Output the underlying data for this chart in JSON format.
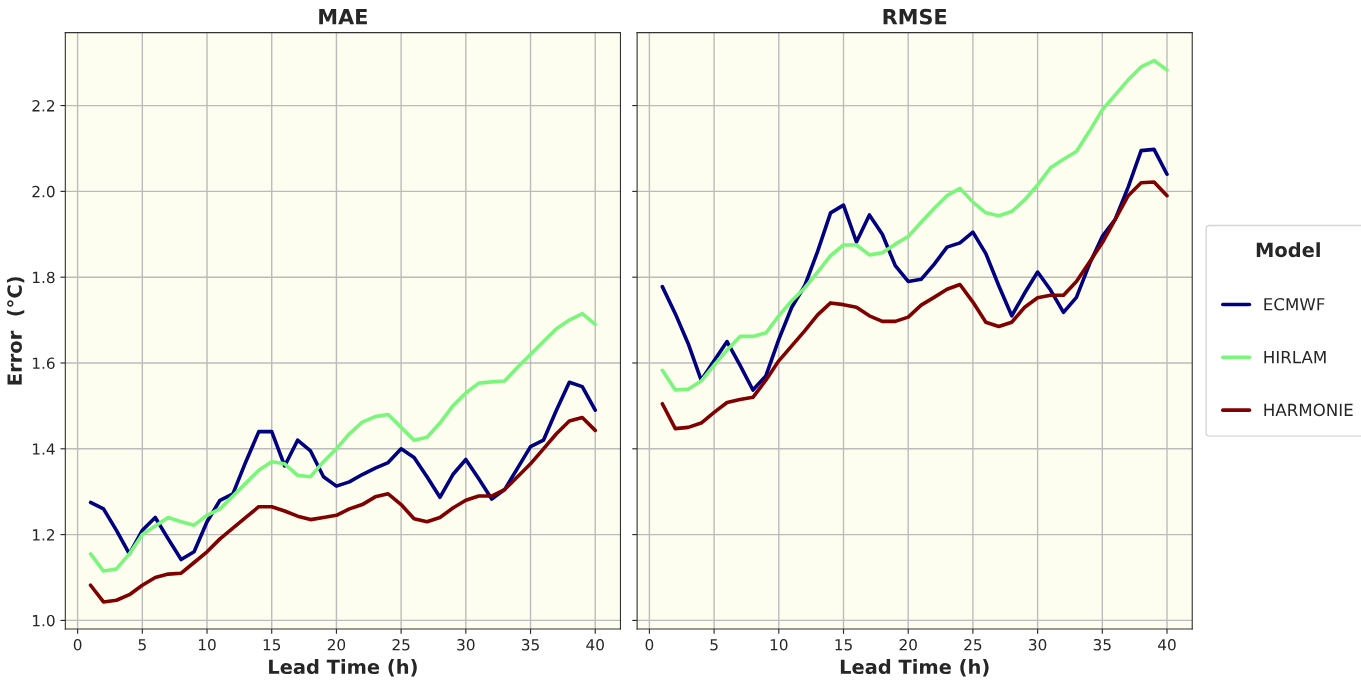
{
  "chart_data": [
    {
      "type": "line",
      "title": "MAE",
      "xlabel": "Lead Time (h)",
      "ylabel": "Error  (°C)",
      "grid": true,
      "xlim": [
        -0.95,
        41.95
      ],
      "xticks": [
        0,
        5,
        10,
        15,
        20,
        25,
        30,
        35,
        40
      ],
      "ylim": [
        0.98,
        2.37
      ],
      "yticks": [
        {
          "value": 1,
          "label": "1.0"
        },
        1.2,
        1.4,
        1.6,
        1.8,
        {
          "value": 2,
          "label": "2.0"
        },
        2.2
      ],
      "x": [
        1,
        2,
        3,
        4,
        5,
        6,
        7,
        8,
        9,
        10,
        11,
        12,
        13,
        14,
        15,
        16,
        17,
        18,
        19,
        20,
        21,
        22,
        23,
        24,
        25,
        26,
        27,
        28,
        29,
        30,
        31,
        32,
        33,
        34,
        35,
        36,
        37,
        38,
        39,
        40
      ],
      "series": [
        {
          "color": "#000080",
          "values": [
            1.275,
            1.26,
            1.21,
            1.155,
            1.21,
            1.24,
            1.19,
            1.142,
            1.16,
            1.23,
            1.28,
            1.295,
            1.37,
            1.44,
            1.44,
            1.36,
            1.42,
            1.395,
            1.335,
            1.313,
            1.323,
            1.34,
            1.355,
            1.368,
            1.4,
            1.38,
            1.335,
            1.287,
            1.34,
            1.375,
            1.33,
            1.283,
            1.305,
            1.355,
            1.405,
            1.42,
            1.49,
            1.555,
            1.545,
            1.49
          ]
        },
        {
          "color": "#7cf57c",
          "values": [
            1.155,
            1.115,
            1.12,
            1.155,
            1.2,
            1.22,
            1.24,
            1.23,
            1.222,
            1.245,
            1.26,
            1.29,
            1.32,
            1.35,
            1.37,
            1.365,
            1.338,
            1.335,
            1.37,
            1.4,
            1.435,
            1.462,
            1.475,
            1.48,
            1.45,
            1.42,
            1.427,
            1.46,
            1.5,
            1.53,
            1.553,
            1.556,
            1.558,
            1.59,
            1.62,
            1.65,
            1.68,
            1.7,
            1.715,
            1.69
          ]
        },
        {
          "color": "#800000",
          "values": [
            1.082,
            1.043,
            1.047,
            1.06,
            1.082,
            1.1,
            1.108,
            1.11,
            1.135,
            1.16,
            1.19,
            1.215,
            1.24,
            1.265,
            1.265,
            1.255,
            1.243,
            1.235,
            1.24,
            1.245,
            1.26,
            1.27,
            1.288,
            1.295,
            1.27,
            1.237,
            1.23,
            1.24,
            1.262,
            1.28,
            1.29,
            1.29,
            1.305,
            1.335,
            1.365,
            1.4,
            1.435,
            1.465,
            1.473,
            1.443
          ]
        }
      ]
    },
    {
      "type": "line",
      "title": "RMSE",
      "xlabel": "Lead Time (h)",
      "grid": true,
      "legend": "right",
      "legend_title": "Model",
      "tick_labels": "x",
      "xlim": [
        -0.95,
        41.95
      ],
      "xticks": [
        0,
        5,
        10,
        15,
        20,
        25,
        30,
        35,
        40
      ],
      "ylim": [
        0.98,
        2.37
      ],
      "yticks": [
        1,
        1.2,
        1.4,
        1.6,
        1.8,
        2,
        2.2
      ],
      "x": [
        1,
        2,
        3,
        4,
        5,
        6,
        7,
        8,
        9,
        10,
        11,
        12,
        13,
        14,
        15,
        16,
        17,
        18,
        19,
        20,
        21,
        22,
        23,
        24,
        25,
        26,
        27,
        28,
        29,
        30,
        31,
        32,
        33,
        34,
        35,
        36,
        37,
        38,
        39,
        40
      ],
      "series": [
        {
          "name": "ECMWF",
          "color": "#000080",
          "values": [
            1.778,
            1.715,
            1.645,
            1.56,
            1.605,
            1.65,
            1.595,
            1.537,
            1.57,
            1.655,
            1.73,
            1.78,
            1.86,
            1.95,
            1.968,
            1.882,
            1.945,
            1.9,
            1.827,
            1.79,
            1.795,
            1.83,
            1.87,
            1.88,
            1.905,
            1.855,
            1.78,
            1.71,
            1.763,
            1.812,
            1.77,
            1.718,
            1.753,
            1.83,
            1.895,
            1.935,
            2.01,
            2.095,
            2.098,
            2.04
          ]
        },
        {
          "name": "HIRLAM",
          "color": "#7cf57c",
          "values": [
            1.583,
            1.537,
            1.539,
            1.558,
            1.595,
            1.63,
            1.662,
            1.662,
            1.67,
            1.71,
            1.745,
            1.775,
            1.812,
            1.85,
            1.875,
            1.875,
            1.852,
            1.857,
            1.877,
            1.895,
            1.928,
            1.96,
            1.99,
            2.007,
            1.975,
            1.95,
            1.943,
            1.953,
            1.98,
            2.015,
            2.055,
            2.075,
            2.093,
            2.14,
            2.19,
            2.225,
            2.26,
            2.29,
            2.305,
            2.283
          ]
        },
        {
          "name": "HARMONIE",
          "color": "#800000",
          "values": [
            1.505,
            1.447,
            1.45,
            1.46,
            1.485,
            1.508,
            1.515,
            1.52,
            1.56,
            1.605,
            1.64,
            1.675,
            1.712,
            1.74,
            1.736,
            1.73,
            1.71,
            1.697,
            1.697,
            1.707,
            1.735,
            1.753,
            1.772,
            1.783,
            1.742,
            1.695,
            1.685,
            1.695,
            1.73,
            1.752,
            1.758,
            1.758,
            1.79,
            1.835,
            1.88,
            1.935,
            1.99,
            2.02,
            2.022,
            1.99
          ]
        }
      ]
    }
  ]
}
